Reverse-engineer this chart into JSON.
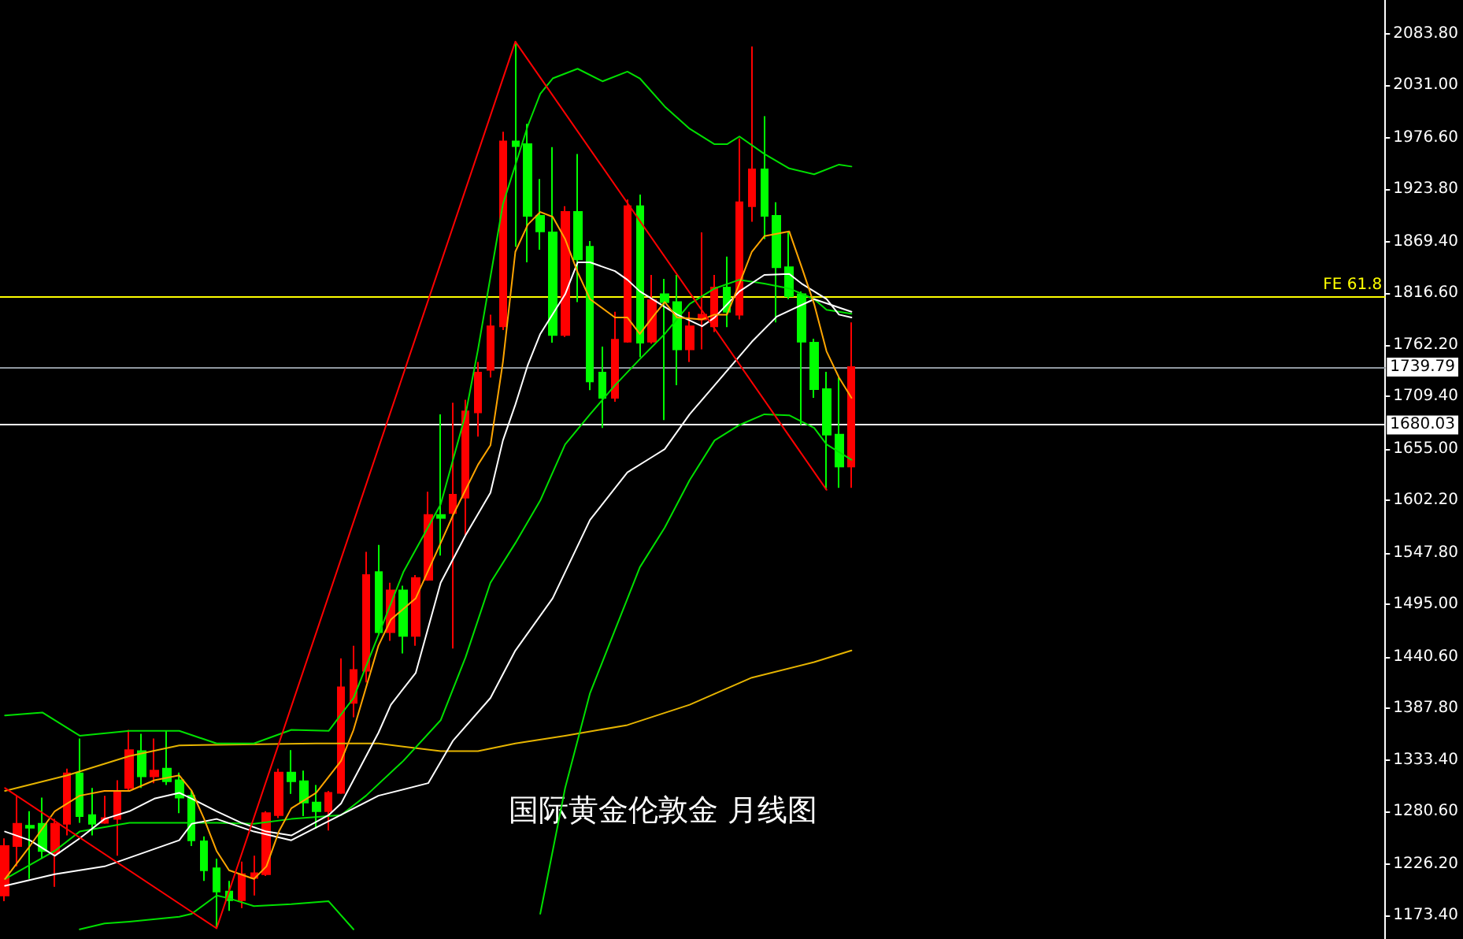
{
  "chart_data": {
    "type": "candlestick",
    "title": "国际黄金伦敦金 月线图",
    "categories": [
      null,
      null,
      null,
      null,
      null,
      null,
      null,
      null,
      null,
      null,
      null,
      null,
      null,
      null,
      null,
      null,
      null,
      null,
      null,
      null,
      null,
      null,
      null,
      null,
      null,
      null,
      null,
      null,
      null,
      null,
      null,
      null,
      null,
      null,
      null,
      null,
      null,
      null,
      null,
      null,
      null,
      null,
      null,
      null,
      null,
      null,
      null,
      null,
      null,
      null,
      null,
      null,
      null,
      null,
      null,
      null,
      null,
      null,
      null,
      null,
      null,
      null,
      null,
      null,
      null,
      null,
      null,
      null,
      null
    ],
    "series": [
      {
        "type": "line",
        "color": "#e6b400",
        "values": [
          1302,
          null,
          null,
          null,
          null,
          1318,
          null,
          null,
          null,
          null,
          1338,
          null,
          null,
          null,
          1349,
          null,
          null,
          null,
          null,
          null,
          null,
          null,
          null,
          null,
          null,
          1351,
          null,
          null,
          null,
          null,
          1351,
          null,
          null,
          null,
          null,
          1343,
          null,
          null,
          1343,
          null,
          null,
          1351,
          null,
          null,
          null,
          1359,
          null,
          null,
          null,
          null,
          1370,
          null,
          null,
          null,
          null,
          1391,
          null,
          null,
          null,
          null,
          1419,
          null,
          null,
          null,
          null,
          1435,
          null,
          null,
          1447
        ]
      },
      {
        "type": "line",
        "color": "#00e000",
        "values": [
          1380,
          null,
          null,
          1383,
          null,
          null,
          1359,
          null,
          null,
          null,
          1364,
          null,
          null,
          null,
          1364,
          null,
          null,
          1351,
          null,
          null,
          1351,
          null,
          null,
          1365,
          null,
          null,
          1364,
          null,
          1398,
          null,
          1463,
          null,
          1528,
          null,
          null,
          1598,
          null,
          1691,
          1758,
          null,
          1908,
          null,
          1989,
          2022,
          2038,
          null,
          2048,
          null,
          2035,
          null,
          2045,
          2038,
          null,
          2009,
          null,
          1986,
          null,
          1970,
          1970,
          1978,
          null,
          1960,
          null,
          1945,
          null,
          1939,
          null,
          1949,
          1947
        ]
      },
      {
        "type": "line",
        "color": "#00e000",
        "values": [
          1211,
          null,
          null,
          null,
          1240,
          null,
          1260,
          null,
          null,
          null,
          1269,
          null,
          null,
          null,
          1269,
          null,
          null,
          1269,
          null,
          null,
          1268,
          null,
          null,
          1273,
          null,
          null,
          null,
          1277,
          null,
          1297,
          null,
          null,
          1333,
          null,
          null,
          1375,
          null,
          1440,
          null,
          1517,
          null,
          1558,
          null,
          1602,
          null,
          1660,
          null,
          1691,
          null,
          1721,
          null,
          1748,
          null,
          1774,
          null,
          1805,
          null,
          1821,
          null,
          1830,
          null,
          1826,
          null,
          1821,
          null,
          1810,
          1799,
          null,
          1795
        ]
      },
      {
        "type": "line",
        "color": "#00e000",
        "values": [
          null,
          null,
          null,
          null,
          null,
          null,
          1159,
          null,
          1165,
          null,
          1167,
          null,
          null,
          null,
          1172,
          1175,
          null,
          1194,
          1191,
          null,
          1183,
          null,
          null,
          1185,
          null,
          null,
          1188,
          null,
          1159,
          null,
          null,
          null,
          null,
          null,
          null,
          null,
          null,
          null,
          null,
          null,
          null,
          null,
          null,
          null,
          null,
          null,
          null,
          null,
          null,
          null,
          null,
          null,
          null,
          null,
          null,
          null,
          null,
          null,
          null,
          null,
          null,
          null,
          null,
          null,
          null,
          null,
          null,
          null,
          null
        ]
      },
      {
        "type": "line",
        "color": "#00e000",
        "values": [
          null,
          null,
          null,
          null,
          null,
          null,
          null,
          null,
          null,
          null,
          null,
          null,
          null,
          null,
          null,
          null,
          null,
          null,
          null,
          null,
          null,
          null,
          null,
          null,
          null,
          null,
          null,
          null,
          null,
          null,
          null,
          null,
          null,
          null,
          null,
          null,
          null,
          null,
          null,
          null,
          null,
          null,
          null,
          1175,
          null,
          1305,
          null,
          1403,
          null,
          1468,
          null,
          1533,
          null,
          1574,
          null,
          1623,
          null,
          1664,
          null,
          1680,
          null,
          1691,
          null,
          1690,
          null,
          1677,
          1660,
          null,
          1644
        ]
      },
      {
        "type": "line",
        "color": "#ffffff",
        "values": [
          1204,
          null,
          null,
          null,
          1216,
          null,
          null,
          null,
          1224,
          null,
          null,
          null,
          null,
          null,
          1251,
          1268,
          null,
          1273,
          null,
          null,
          1260,
          null,
          null,
          1251,
          null,
          null,
          null,
          null,
          null,
          null,
          1297,
          null,
          null,
          null,
          1310,
          null,
          1354,
          null,
          null,
          1398,
          null,
          1447,
          null,
          null,
          1501,
          null,
          null,
          1582,
          null,
          null,
          1631,
          null,
          1647,
          1655,
          null,
          1691,
          null,
          1721,
          null,
          null,
          1766,
          null,
          1792,
          null,
          null,
          1810,
          null,
          null,
          1797
        ]
      },
      {
        "type": "line",
        "color": "#ffffff",
        "values": [
          1260,
          null,
          1251,
          null,
          1235,
          null,
          1253,
          null,
          1273,
          null,
          1281,
          null,
          1294,
          null,
          1300,
          1294,
          null,
          1281,
          null,
          1269,
          null,
          1260,
          null,
          1256,
          null,
          null,
          1277,
          1289,
          null,
          null,
          1362,
          1391,
          null,
          1424,
          null,
          1517,
          null,
          1566,
          null,
          1610,
          1664,
          1701,
          1742,
          1774,
          null,
          1815,
          1848,
          1848,
          null,
          1839,
          1830,
          1818,
          1810,
          null,
          1794,
          null,
          1782,
          1791,
          null,
          1818,
          null,
          1835,
          null,
          1836,
          1826,
          null,
          1810,
          1794,
          1791
        ]
      },
      {
        "type": "line",
        "color": "#ffa500",
        "values": [
          1211,
          null,
          1245,
          null,
          1281,
          null,
          1297,
          null,
          1302,
          null,
          1302,
          null,
          1313,
          null,
          1318,
          1302,
          1273,
          1240,
          1220,
          null,
          1211,
          1224,
          1260,
          1284,
          null,
          1300,
          null,
          1333,
          1365,
          null,
          1452,
          1479,
          null,
          1501,
          null,
          1558,
          1587,
          null,
          1639,
          1659,
          1745,
          1859,
          1887,
          1900,
          1895,
          1872,
          1838,
          1810,
          null,
          1791,
          1791,
          1774,
          1791,
          1807,
          1791,
          null,
          1789,
          1794,
          1794,
          1826,
          1859,
          1875,
          null,
          1880,
          1843,
          1805,
          1756,
          1729,
          1708
        ]
      },
      {
        "type": "line",
        "color": "#ff0000",
        "values": [
          1305,
          null,
          null,
          null,
          null,
          null,
          null,
          null,
          null,
          null,
          null,
          null,
          null,
          null,
          null,
          null,
          null,
          1160,
          null,
          null,
          null,
          null,
          null,
          null,
          null,
          null,
          null,
          null,
          null,
          null,
          null,
          null,
          null,
          null,
          null,
          null,
          null,
          null,
          null,
          null,
          null,
          2076,
          null,
          null,
          null,
          null,
          null,
          null,
          null,
          null,
          null,
          null,
          null,
          null,
          null,
          null,
          null,
          null,
          null,
          null,
          null,
          null,
          null,
          null,
          null,
          null,
          1613,
          null,
          null
        ]
      },
      {
        "ohlc": [
          [
            1194,
            1253,
            1188,
            1245
          ],
          [
            1245,
            1297,
            1224,
            1268
          ],
          [
            1266,
            1281,
            1211,
            1264
          ],
          [
            1268,
            1295,
            1232,
            1240
          ],
          [
            1238,
            1273,
            1203,
            1268
          ],
          [
            1268,
            1325,
            1256,
            1320
          ],
          [
            1320,
            1356,
            1269,
            1276
          ],
          [
            1277,
            1305,
            1256,
            1268
          ],
          [
            1269,
            1297,
            1268,
            1274
          ],
          [
            1273,
            1313,
            1235,
            1302
          ],
          [
            1305,
            1365,
            1302,
            1344
          ],
          [
            1343,
            1361,
            1305,
            1317
          ],
          [
            1317,
            1356,
            1310,
            1323
          ],
          [
            1325,
            1364,
            1308,
            1312
          ],
          [
            1313,
            1321,
            1279,
            1295
          ],
          [
            1297,
            1302,
            1245,
            1251
          ],
          [
            1250,
            1255,
            1209,
            1220
          ],
          [
            1222,
            1232,
            1160,
            1198
          ],
          [
            1198,
            1209,
            1178,
            1189
          ],
          [
            1189,
            1229,
            1181,
            1216
          ],
          [
            1212,
            1235,
            1194,
            1217
          ],
          [
            1216,
            1281,
            1214,
            1279
          ],
          [
            1277,
            1325,
            1274,
            1321
          ],
          [
            1321,
            1344,
            1299,
            1312
          ],
          [
            1312,
            1323,
            1276,
            1290
          ],
          [
            1290,
            1308,
            1263,
            1281
          ],
          [
            1281,
            1302,
            1261,
            1300
          ],
          [
            1300,
            1439,
            1299,
            1409
          ],
          [
            1393,
            1452,
            1378,
            1427
          ],
          [
            1426,
            1549,
            1414,
            1525
          ],
          [
            1528,
            1556,
            1463,
            1466
          ],
          [
            1466,
            1517,
            1457,
            1509
          ],
          [
            1509,
            1514,
            1444,
            1462
          ],
          [
            1462,
            1525,
            1452,
            1522
          ],
          [
            1520,
            1611,
            1519,
            1587
          ],
          [
            1587,
            1691,
            1545,
            1584
          ],
          [
            1589,
            1703,
            1449,
            1608
          ],
          [
            1605,
            1706,
            1566,
            1694
          ],
          [
            1693,
            1745,
            1668,
            1734
          ],
          [
            1737,
            1794,
            1729,
            1782
          ],
          [
            1782,
            1983,
            1778,
            1973
          ],
          [
            1973,
            2076,
            1864,
            1968
          ],
          [
            1970,
            1991,
            1848,
            1896
          ],
          [
            1896,
            1934,
            1861,
            1880
          ],
          [
            1879,
            1967,
            1765,
            1773
          ],
          [
            1773,
            1906,
            1771,
            1900
          ],
          [
            1900,
            1960,
            1807,
            1851
          ],
          [
            1864,
            1870,
            1716,
            1725
          ],
          [
            1734,
            1761,
            1677,
            1708
          ],
          [
            1708,
            1797,
            1704,
            1768
          ],
          [
            1766,
            1913,
            1765,
            1906
          ],
          [
            1906,
            1918,
            1750,
            1765
          ],
          [
            1766,
            1835,
            1764,
            1809
          ],
          [
            1815,
            1831,
            1685,
            1807
          ],
          [
            1807,
            1835,
            1721,
            1758
          ],
          [
            1758,
            1797,
            1745,
            1782
          ],
          [
            1789,
            1879,
            1758,
            1794
          ],
          [
            1782,
            1835,
            1776,
            1822
          ],
          [
            1822,
            1854,
            1781,
            1797
          ],
          [
            1794,
            1976,
            1789,
            1910
          ],
          [
            1906,
            2071,
            1890,
            1944
          ],
          [
            1944,
            1999,
            1872,
            1896
          ],
          [
            1896,
            1910,
            1786,
            1843
          ],
          [
            1843,
            1879,
            1810,
            1813
          ],
          [
            1815,
            1818,
            1680,
            1766
          ],
          [
            1765,
            1769,
            1708,
            1717
          ],
          [
            1717,
            1735,
            1613,
            1670
          ],
          [
            1670,
            1729,
            1615,
            1637
          ],
          [
            1637,
            1786,
            1615,
            1739.79
          ]
        ],
        "colors": [
          "#ff0000",
          "#ff0000",
          "#00ff00",
          "#00ff00",
          "#ff0000",
          "#ff0000",
          "#00ff00",
          "#00ff00",
          "#ff0000",
          "#ff0000",
          "#ff0000",
          "#00ff00",
          "#ff0000",
          "#00ff00",
          "#00ff00",
          "#00ff00",
          "#00ff00",
          "#00ff00",
          "#00ff00",
          "#ff0000",
          "#ff0000",
          "#ff0000",
          "#ff0000",
          "#00ff00",
          "#00ff00",
          "#00ff00",
          "#ff0000",
          "#ff0000",
          "#ff0000",
          "#ff0000",
          "#00ff00",
          "#ff0000",
          "#00ff00",
          "#ff0000",
          "#ff0000",
          "#00ff00",
          "#ff0000",
          "#ff0000",
          "#ff0000",
          "#ff0000",
          "#ff0000",
          "#00ff00",
          "#00ff00",
          "#00ff00",
          "#00ff00",
          "#ff0000",
          "#00ff00",
          "#00ff00",
          "#00ff00",
          "#ff0000",
          "#ff0000",
          "#00ff00",
          "#ff0000",
          "#00ff00",
          "#00ff00",
          "#ff0000",
          "#ff0000",
          "#ff0000",
          "#00ff00",
          "#ff0000",
          "#ff0000",
          "#00ff00",
          "#00ff00",
          "#00ff00",
          "#00ff00",
          "#00ff00",
          "#00ff00",
          "#00ff00",
          "#ff0000"
        ]
      }
    ],
    "ylim": [
      1149,
      2119
    ],
    "yticks": [
      {
        "value": 2083.8,
        "label": "2083.80"
      },
      {
        "value": 2031,
        "label": "2031.00"
      },
      {
        "value": 1976.6,
        "label": "1976.60"
      },
      {
        "value": 1923.8,
        "label": "1923.80"
      },
      {
        "value": 1869.4,
        "label": "1869.40"
      },
      {
        "value": 1816.6,
        "label": "1816.60"
      },
      {
        "value": 1762.2,
        "label": "1762.20"
      },
      {
        "value": 1709.4,
        "label": "1709.40"
      },
      {
        "value": 1655,
        "label": "1655.00"
      },
      {
        "value": 1602.2,
        "label": "1602.20"
      },
      {
        "value": 1547.8,
        "label": "1547.80"
      },
      {
        "value": 1495,
        "label": "1495.00"
      },
      {
        "value": 1440.6,
        "label": "1440.60"
      },
      {
        "value": 1387.8,
        "label": "1387.80"
      },
      {
        "value": 1333.4,
        "label": "1333.40"
      },
      {
        "value": 1280.6,
        "label": "1280.60"
      },
      {
        "value": 1226.2,
        "label": "1226.20"
      },
      {
        "value": 1173.4,
        "label": "1173.40"
      }
    ],
    "ref_lines": [
      {
        "axis": "y",
        "value": 1813,
        "label": "FE 61.8",
        "color": "#ffff00"
      },
      {
        "axis": "y",
        "value": 1739.79,
        "label": "1739.79",
        "color": "#9098a0"
      },
      {
        "axis": "y",
        "value": 1680.03,
        "label": "1680.03",
        "color": "#ffffff"
      }
    ],
    "marker": "none",
    "grid": false,
    "tick_labels": "y"
  }
}
